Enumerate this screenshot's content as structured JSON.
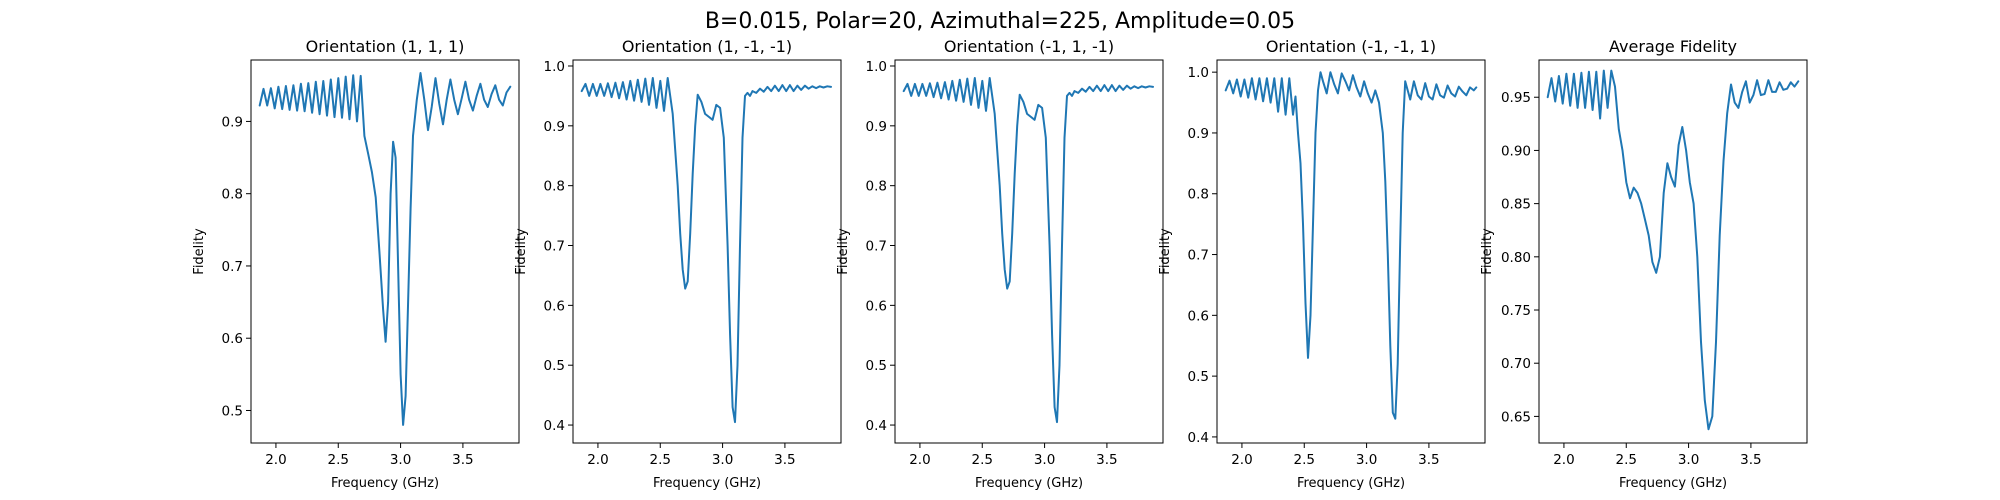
{
  "figure": {
    "suptitle": "B=0.015, Polar=20, Azimuthal=225, Amplitude=0.05",
    "line_color": "#1f77b4"
  },
  "chart_data": [
    {
      "type": "line",
      "title": "Orientation (1, 1, 1)",
      "xlabel": "Frequency (GHz)",
      "ylabel": "Fidelity",
      "xlim": [
        1.8,
        3.95
      ],
      "ylim": [
        0.455,
        0.985
      ],
      "xticks": [
        "2.0",
        "2.5",
        "3.0",
        "3.5"
      ],
      "yticks": [
        "0.5",
        "0.6",
        "0.7",
        "0.8",
        "0.9"
      ],
      "series": [
        {
          "x": [
            1.87,
            1.9,
            1.93,
            1.96,
            1.99,
            2.02,
            2.05,
            2.08,
            2.11,
            2.14,
            2.17,
            2.2,
            2.23,
            2.26,
            2.29,
            2.32,
            2.35,
            2.38,
            2.41,
            2.44,
            2.47,
            2.5,
            2.53,
            2.56,
            2.59,
            2.62,
            2.65,
            2.68,
            2.71,
            2.74,
            2.77,
            2.8,
            2.83,
            2.86,
            2.88,
            2.9,
            2.92,
            2.94,
            2.96,
            2.98,
            3.0,
            3.02,
            3.04,
            3.06,
            3.08,
            3.1,
            3.13,
            3.16,
            3.19,
            3.22,
            3.25,
            3.28,
            3.31,
            3.34,
            3.37,
            3.4,
            3.43,
            3.46,
            3.49,
            3.52,
            3.55,
            3.58,
            3.61,
            3.64,
            3.67,
            3.7,
            3.73,
            3.76,
            3.79,
            3.82,
            3.85,
            3.88
          ],
          "y": [
            0.922,
            0.945,
            0.922,
            0.946,
            0.918,
            0.948,
            0.917,
            0.949,
            0.916,
            0.95,
            0.915,
            0.952,
            0.914,
            0.953,
            0.912,
            0.955,
            0.91,
            0.956,
            0.908,
            0.958,
            0.906,
            0.96,
            0.905,
            0.962,
            0.903,
            0.964,
            0.9,
            0.963,
            0.88,
            0.855,
            0.83,
            0.795,
            0.72,
            0.64,
            0.595,
            0.65,
            0.8,
            0.872,
            0.85,
            0.7,
            0.55,
            0.48,
            0.52,
            0.65,
            0.78,
            0.88,
            0.93,
            0.967,
            0.93,
            0.888,
            0.92,
            0.96,
            0.925,
            0.896,
            0.93,
            0.958,
            0.93,
            0.91,
            0.932,
            0.955,
            0.93,
            0.915,
            0.935,
            0.952,
            0.93,
            0.92,
            0.938,
            0.95,
            0.93,
            0.922,
            0.94,
            0.948
          ]
        }
      ]
    },
    {
      "type": "line",
      "title": "Orientation (1, -1, -1)",
      "xlabel": "Frequency (GHz)",
      "ylabel": "Fidelity",
      "xlim": [
        1.8,
        3.95
      ],
      "ylim": [
        0.37,
        1.01
      ],
      "xticks": [
        "2.0",
        "2.5",
        "3.0",
        "3.5"
      ],
      "yticks": [
        "0.4",
        "0.5",
        "0.6",
        "0.7",
        "0.8",
        "0.9",
        "1.0"
      ],
      "series": [
        {
          "x": [
            1.87,
            1.9,
            1.93,
            1.96,
            1.99,
            2.02,
            2.05,
            2.08,
            2.11,
            2.14,
            2.17,
            2.2,
            2.23,
            2.26,
            2.29,
            2.32,
            2.35,
            2.38,
            2.41,
            2.44,
            2.47,
            2.5,
            2.53,
            2.56,
            2.58,
            2.6,
            2.62,
            2.64,
            2.66,
            2.68,
            2.7,
            2.72,
            2.74,
            2.76,
            2.78,
            2.8,
            2.83,
            2.86,
            2.89,
            2.92,
            2.95,
            2.98,
            3.01,
            3.04,
            3.06,
            3.08,
            3.1,
            3.12,
            3.14,
            3.16,
            3.18,
            3.2,
            3.22,
            3.24,
            3.27,
            3.3,
            3.33,
            3.36,
            3.39,
            3.42,
            3.45,
            3.48,
            3.51,
            3.54,
            3.57,
            3.6,
            3.63,
            3.66,
            3.69,
            3.72,
            3.75,
            3.78,
            3.81,
            3.84,
            3.87
          ],
          "y": [
            0.958,
            0.97,
            0.95,
            0.97,
            0.95,
            0.97,
            0.95,
            0.971,
            0.948,
            0.972,
            0.946,
            0.973,
            0.944,
            0.975,
            0.942,
            0.977,
            0.94,
            0.979,
            0.935,
            0.98,
            0.93,
            0.975,
            0.925,
            0.98,
            0.95,
            0.92,
            0.86,
            0.8,
            0.72,
            0.66,
            0.628,
            0.64,
            0.72,
            0.82,
            0.9,
            0.952,
            0.94,
            0.92,
            0.915,
            0.91,
            0.935,
            0.93,
            0.88,
            0.7,
            0.55,
            0.43,
            0.405,
            0.5,
            0.7,
            0.88,
            0.95,
            0.955,
            0.95,
            0.958,
            0.955,
            0.962,
            0.957,
            0.965,
            0.958,
            0.967,
            0.958,
            0.968,
            0.958,
            0.968,
            0.958,
            0.967,
            0.96,
            0.967,
            0.962,
            0.966,
            0.963,
            0.966,
            0.964,
            0.966,
            0.965
          ]
        }
      ]
    },
    {
      "type": "line",
      "title": "Orientation (-1, 1, -1)",
      "xlabel": "Frequency (GHz)",
      "ylabel": "Fidelity",
      "xlim": [
        1.8,
        3.95
      ],
      "ylim": [
        0.37,
        1.01
      ],
      "xticks": [
        "2.0",
        "2.5",
        "3.0",
        "3.5"
      ],
      "yticks": [
        "0.4",
        "0.5",
        "0.6",
        "0.7",
        "0.8",
        "0.9",
        "1.0"
      ],
      "series": [
        {
          "x": [
            1.87,
            1.9,
            1.93,
            1.96,
            1.99,
            2.02,
            2.05,
            2.08,
            2.11,
            2.14,
            2.17,
            2.2,
            2.23,
            2.26,
            2.29,
            2.32,
            2.35,
            2.38,
            2.41,
            2.44,
            2.47,
            2.5,
            2.53,
            2.56,
            2.58,
            2.6,
            2.62,
            2.64,
            2.66,
            2.68,
            2.7,
            2.72,
            2.74,
            2.76,
            2.78,
            2.8,
            2.83,
            2.86,
            2.89,
            2.92,
            2.95,
            2.98,
            3.01,
            3.04,
            3.06,
            3.08,
            3.1,
            3.12,
            3.14,
            3.16,
            3.18,
            3.2,
            3.22,
            3.24,
            3.27,
            3.3,
            3.33,
            3.36,
            3.39,
            3.42,
            3.45,
            3.48,
            3.51,
            3.54,
            3.57,
            3.6,
            3.63,
            3.66,
            3.69,
            3.72,
            3.75,
            3.78,
            3.81,
            3.84,
            3.87
          ],
          "y": [
            0.958,
            0.97,
            0.95,
            0.97,
            0.95,
            0.97,
            0.95,
            0.971,
            0.948,
            0.972,
            0.946,
            0.973,
            0.944,
            0.975,
            0.942,
            0.977,
            0.94,
            0.979,
            0.935,
            0.98,
            0.93,
            0.975,
            0.925,
            0.98,
            0.95,
            0.92,
            0.86,
            0.8,
            0.72,
            0.66,
            0.628,
            0.64,
            0.72,
            0.82,
            0.9,
            0.952,
            0.94,
            0.92,
            0.915,
            0.91,
            0.935,
            0.93,
            0.88,
            0.7,
            0.55,
            0.43,
            0.405,
            0.5,
            0.7,
            0.88,
            0.95,
            0.955,
            0.95,
            0.958,
            0.955,
            0.962,
            0.957,
            0.965,
            0.958,
            0.967,
            0.958,
            0.968,
            0.958,
            0.968,
            0.958,
            0.967,
            0.96,
            0.967,
            0.962,
            0.966,
            0.963,
            0.966,
            0.964,
            0.966,
            0.965
          ]
        }
      ]
    },
    {
      "type": "line",
      "title": "Orientation (-1, -1, 1)",
      "xlabel": "Frequency (GHz)",
      "ylabel": "Fidelity",
      "xlim": [
        1.8,
        3.95
      ],
      "ylim": [
        0.39,
        1.02
      ],
      "xticks": [
        "2.0",
        "2.5",
        "3.0",
        "3.5"
      ],
      "yticks": [
        "0.4",
        "0.5",
        "0.6",
        "0.7",
        "0.8",
        "0.9",
        "1.0"
      ],
      "series": [
        {
          "x": [
            1.87,
            1.9,
            1.93,
            1.96,
            1.99,
            2.02,
            2.05,
            2.08,
            2.11,
            2.14,
            2.17,
            2.2,
            2.23,
            2.26,
            2.29,
            2.32,
            2.35,
            2.38,
            2.41,
            2.43,
            2.45,
            2.47,
            2.49,
            2.51,
            2.53,
            2.55,
            2.57,
            2.59,
            2.61,
            2.63,
            2.65,
            2.68,
            2.71,
            2.74,
            2.77,
            2.8,
            2.83,
            2.86,
            2.89,
            2.92,
            2.95,
            2.98,
            3.01,
            3.04,
            3.07,
            3.1,
            3.13,
            3.15,
            3.17,
            3.19,
            3.21,
            3.23,
            3.25,
            3.27,
            3.29,
            3.31,
            3.33,
            3.35,
            3.38,
            3.41,
            3.44,
            3.47,
            3.5,
            3.53,
            3.56,
            3.59,
            3.62,
            3.65,
            3.68,
            3.71,
            3.74,
            3.77,
            3.8,
            3.83,
            3.86,
            3.88
          ],
          "y": [
            0.97,
            0.986,
            0.965,
            0.988,
            0.96,
            0.988,
            0.958,
            0.99,
            0.955,
            0.99,
            0.952,
            0.99,
            0.95,
            0.99,
            0.935,
            0.99,
            0.93,
            0.99,
            0.93,
            0.96,
            0.9,
            0.85,
            0.75,
            0.62,
            0.53,
            0.6,
            0.75,
            0.9,
            0.97,
            1.0,
            0.985,
            0.965,
            1.0,
            0.98,
            0.965,
            0.998,
            0.985,
            0.97,
            0.995,
            0.975,
            0.96,
            0.985,
            0.965,
            0.95,
            0.97,
            0.95,
            0.9,
            0.82,
            0.7,
            0.55,
            0.44,
            0.43,
            0.52,
            0.72,
            0.9,
            0.985,
            0.97,
            0.955,
            0.985,
            0.962,
            0.955,
            0.982,
            0.96,
            0.955,
            0.98,
            0.962,
            0.958,
            0.978,
            0.965,
            0.96,
            0.976,
            0.968,
            0.962,
            0.975,
            0.97,
            0.975
          ]
        }
      ]
    },
    {
      "type": "line",
      "title": "Average Fidelity",
      "xlabel": "Frequency (GHz)",
      "ylabel": "Fidelity",
      "xlim": [
        1.8,
        3.95
      ],
      "ylim": [
        0.625,
        0.985
      ],
      "xticks": [
        "2.0",
        "2.5",
        "3.0",
        "3.5"
      ],
      "yticks": [
        "0.65",
        "0.70",
        "0.75",
        "0.80",
        "0.85",
        "0.90",
        "0.95"
      ],
      "series": [
        {
          "x": [
            1.87,
            1.9,
            1.93,
            1.96,
            1.99,
            2.02,
            2.05,
            2.08,
            2.11,
            2.14,
            2.17,
            2.2,
            2.23,
            2.26,
            2.29,
            2.32,
            2.35,
            2.38,
            2.41,
            2.44,
            2.47,
            2.5,
            2.53,
            2.56,
            2.59,
            2.62,
            2.65,
            2.68,
            2.71,
            2.74,
            2.77,
            2.8,
            2.83,
            2.86,
            2.89,
            2.92,
            2.95,
            2.98,
            3.01,
            3.04,
            3.07,
            3.1,
            3.13,
            3.16,
            3.19,
            3.22,
            3.25,
            3.28,
            3.31,
            3.34,
            3.37,
            3.4,
            3.43,
            3.46,
            3.49,
            3.52,
            3.55,
            3.58,
            3.61,
            3.64,
            3.67,
            3.7,
            3.73,
            3.76,
            3.79,
            3.82,
            3.85,
            3.88
          ],
          "y": [
            0.95,
            0.968,
            0.946,
            0.97,
            0.944,
            0.972,
            0.942,
            0.972,
            0.94,
            0.973,
            0.94,
            0.974,
            0.938,
            0.974,
            0.93,
            0.975,
            0.94,
            0.975,
            0.96,
            0.92,
            0.9,
            0.87,
            0.855,
            0.865,
            0.86,
            0.85,
            0.835,
            0.82,
            0.795,
            0.785,
            0.8,
            0.86,
            0.888,
            0.875,
            0.866,
            0.905,
            0.922,
            0.9,
            0.87,
            0.85,
            0.8,
            0.72,
            0.665,
            0.638,
            0.65,
            0.72,
            0.82,
            0.89,
            0.935,
            0.962,
            0.945,
            0.94,
            0.955,
            0.965,
            0.945,
            0.952,
            0.966,
            0.952,
            0.953,
            0.966,
            0.955,
            0.955,
            0.964,
            0.957,
            0.958,
            0.964,
            0.96,
            0.965
          ]
        }
      ]
    }
  ]
}
